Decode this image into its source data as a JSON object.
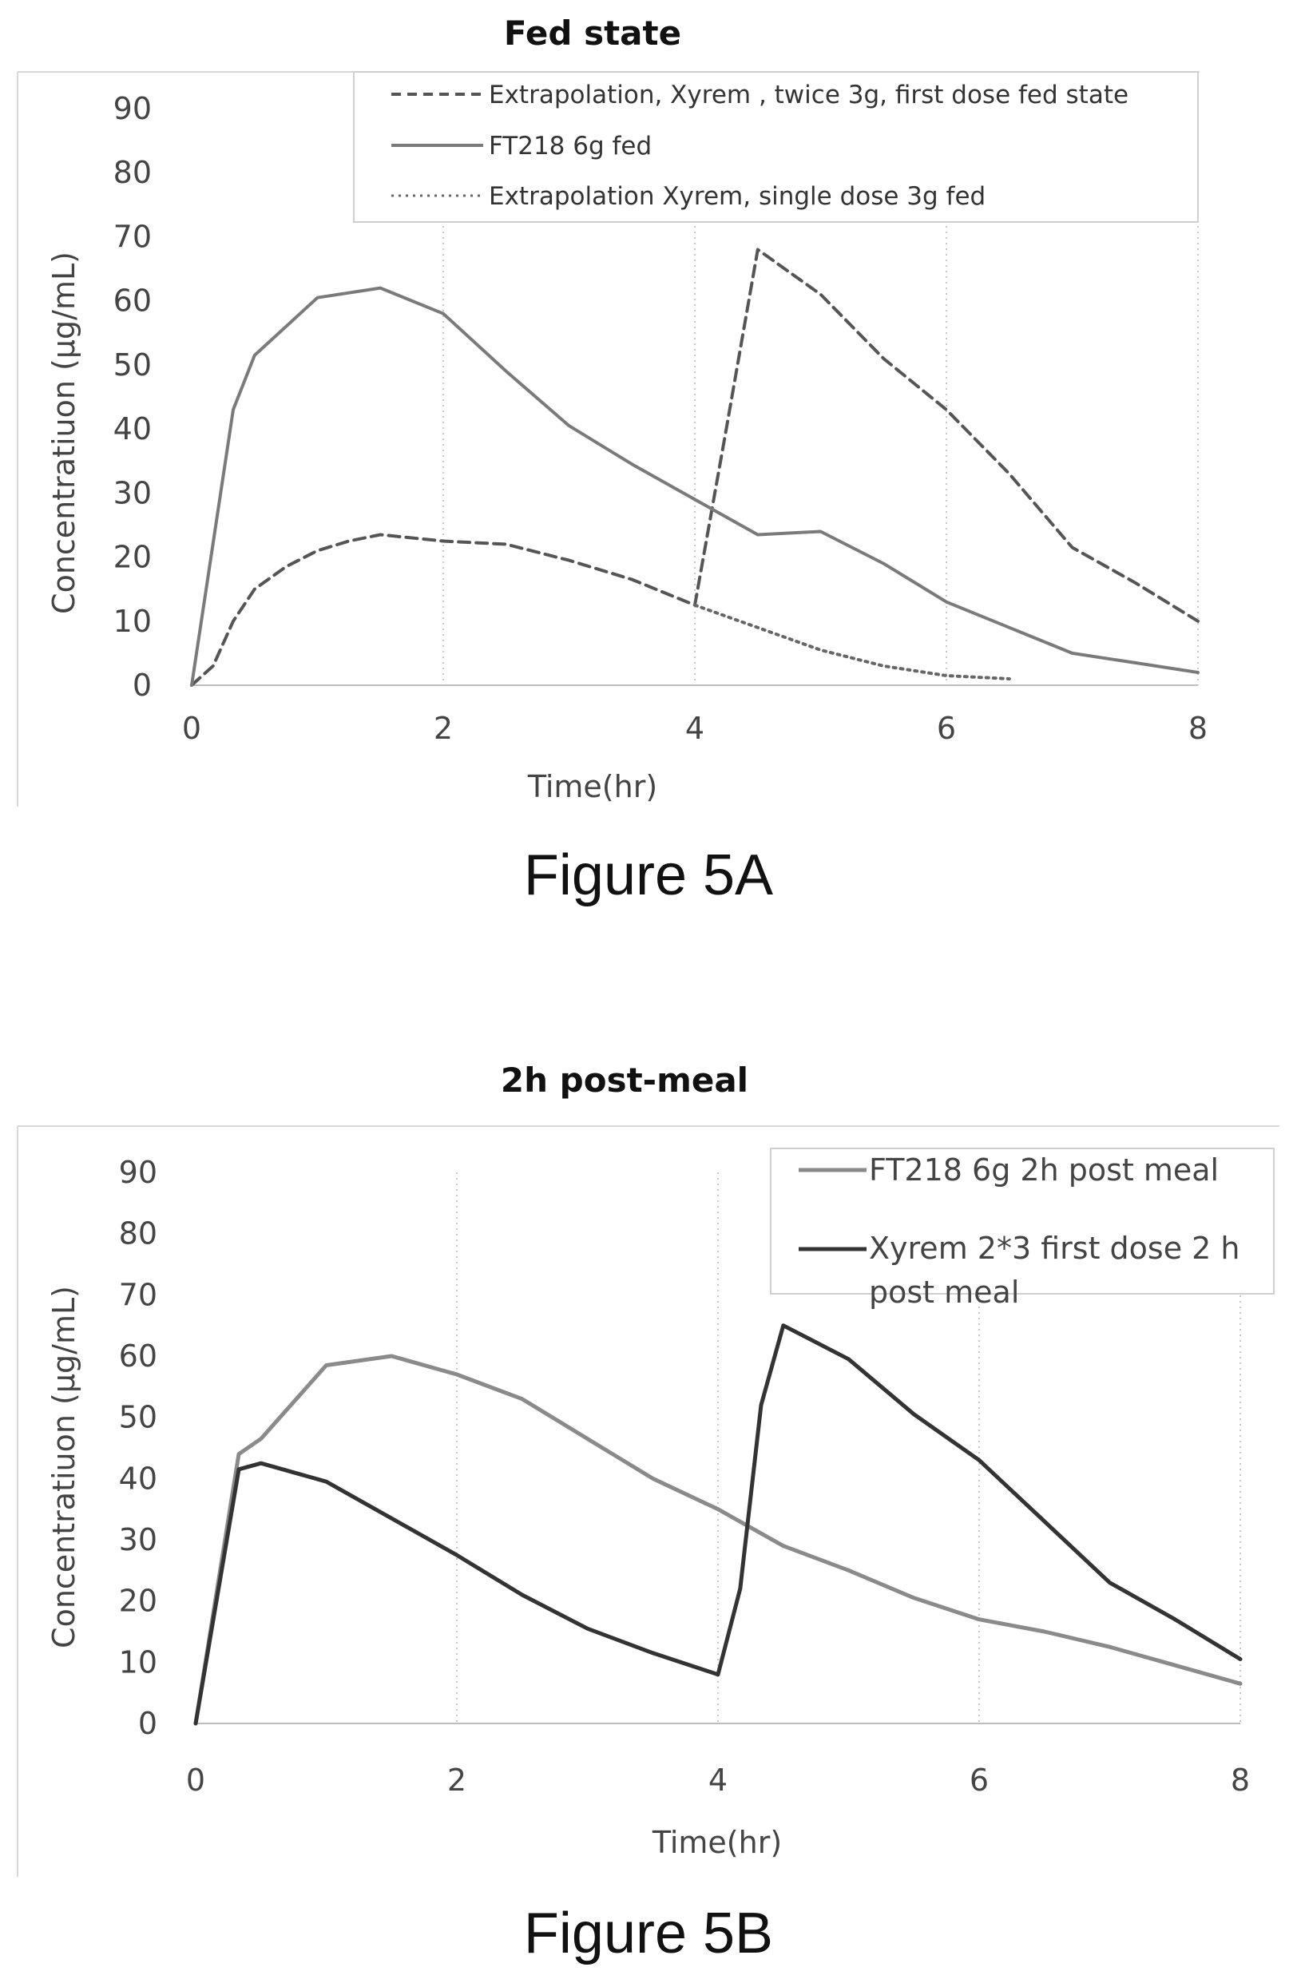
{
  "figures": [
    {
      "caption": "Figure 5A",
      "chart_data": {
        "type": "line",
        "title": "Fed state",
        "xlabel": "Time(hr)",
        "ylabel": "Concentratiuon (µg/mL)",
        "xlim": [
          0,
          8
        ],
        "ylim": [
          0,
          90
        ],
        "xticks": [
          0,
          2,
          4,
          6,
          8
        ],
        "yticks": [
          0,
          10,
          20,
          30,
          40,
          50,
          60,
          70,
          80,
          90
        ],
        "grid": "vertical dotted",
        "legend_position": "top-right",
        "series": [
          {
            "name": "Extrapolation, Xyrem , twice 3g, first dose fed state",
            "style": "dashed",
            "color": "#555555",
            "x": [
              0,
              0.17,
              0.33,
              0.5,
              0.75,
              1,
              1.25,
              1.5,
              2,
              2.5,
              3,
              3.5,
              4,
              4.25,
              4.5,
              5,
              5.5,
              6,
              6.5,
              7,
              7.5,
              8
            ],
            "y": [
              0,
              3,
              10,
              15,
              18.5,
              21,
              22.5,
              23.5,
              22.5,
              22,
              19.5,
              16.5,
              12.5,
              40,
              68,
              61,
              51,
              43,
              33,
              21.5,
              16,
              10
            ]
          },
          {
            "name": "FT218 6g fed",
            "style": "solid",
            "color": "#7a7a7a",
            "x": [
              0,
              0.33,
              0.5,
              1,
              1.5,
              2,
              2.5,
              3,
              3.5,
              4,
              4.5,
              5,
              5.5,
              6,
              6.5,
              7,
              7.5,
              8
            ],
            "y": [
              0,
              43,
              51.5,
              60.5,
              62,
              58,
              49,
              40.5,
              34.5,
              29,
              23.5,
              24,
              19,
              13,
              9,
              5,
              3.5,
              2
            ]
          },
          {
            "name": "Extrapolation Xyrem, single dose 3g fed",
            "style": "dotted",
            "color": "#666666",
            "x": [
              4,
              4.5,
              5,
              5.5,
              6,
              6.5
            ],
            "y": [
              12.5,
              9,
              5.5,
              3,
              1.5,
              1
            ]
          }
        ]
      }
    },
    {
      "caption": "Figure 5B",
      "chart_data": {
        "type": "line",
        "title": "2h post-meal",
        "xlabel": "Time(hr)",
        "ylabel": "Concentratiuon (µg/mL)",
        "xlim": [
          0,
          8
        ],
        "ylim": [
          0,
          90
        ],
        "xticks": [
          0,
          2,
          4,
          6,
          8
        ],
        "yticks": [
          0,
          10,
          20,
          30,
          40,
          50,
          60,
          70,
          80,
          90
        ],
        "grid": "vertical dotted",
        "legend_position": "top-right",
        "series": [
          {
            "name": "FT218 6g 2h post meal",
            "style": "solid",
            "color": "#8a8a8a",
            "x": [
              0,
              0.33,
              0.5,
              1,
              1.5,
              2,
              2.5,
              3,
              3.5,
              4,
              4.5,
              5,
              5.5,
              6,
              6.5,
              7,
              7.5,
              8
            ],
            "y": [
              0,
              44,
              46.5,
              58.5,
              60,
              57,
              53,
              46.5,
              40,
              35,
              29,
              25,
              20.5,
              17,
              15,
              12.5,
              9.5,
              6.5
            ]
          },
          {
            "name": "Xyrem 2*3 first dose 2 h post meal",
            "style": "solid",
            "color": "#333333",
            "x": [
              0,
              0.33,
              0.5,
              1,
              1.5,
              2,
              2.5,
              3,
              3.5,
              4,
              4.17,
              4.33,
              4.5,
              5,
              5.5,
              6,
              6.5,
              7,
              7.5,
              8
            ],
            "y": [
              0,
              41.5,
              42.5,
              39.5,
              33.5,
              27.5,
              21,
              15.5,
              11.5,
              8,
              22,
              52,
              65,
              59.5,
              50.5,
              43,
              33,
              23,
              17,
              10.5
            ]
          }
        ]
      }
    }
  ]
}
